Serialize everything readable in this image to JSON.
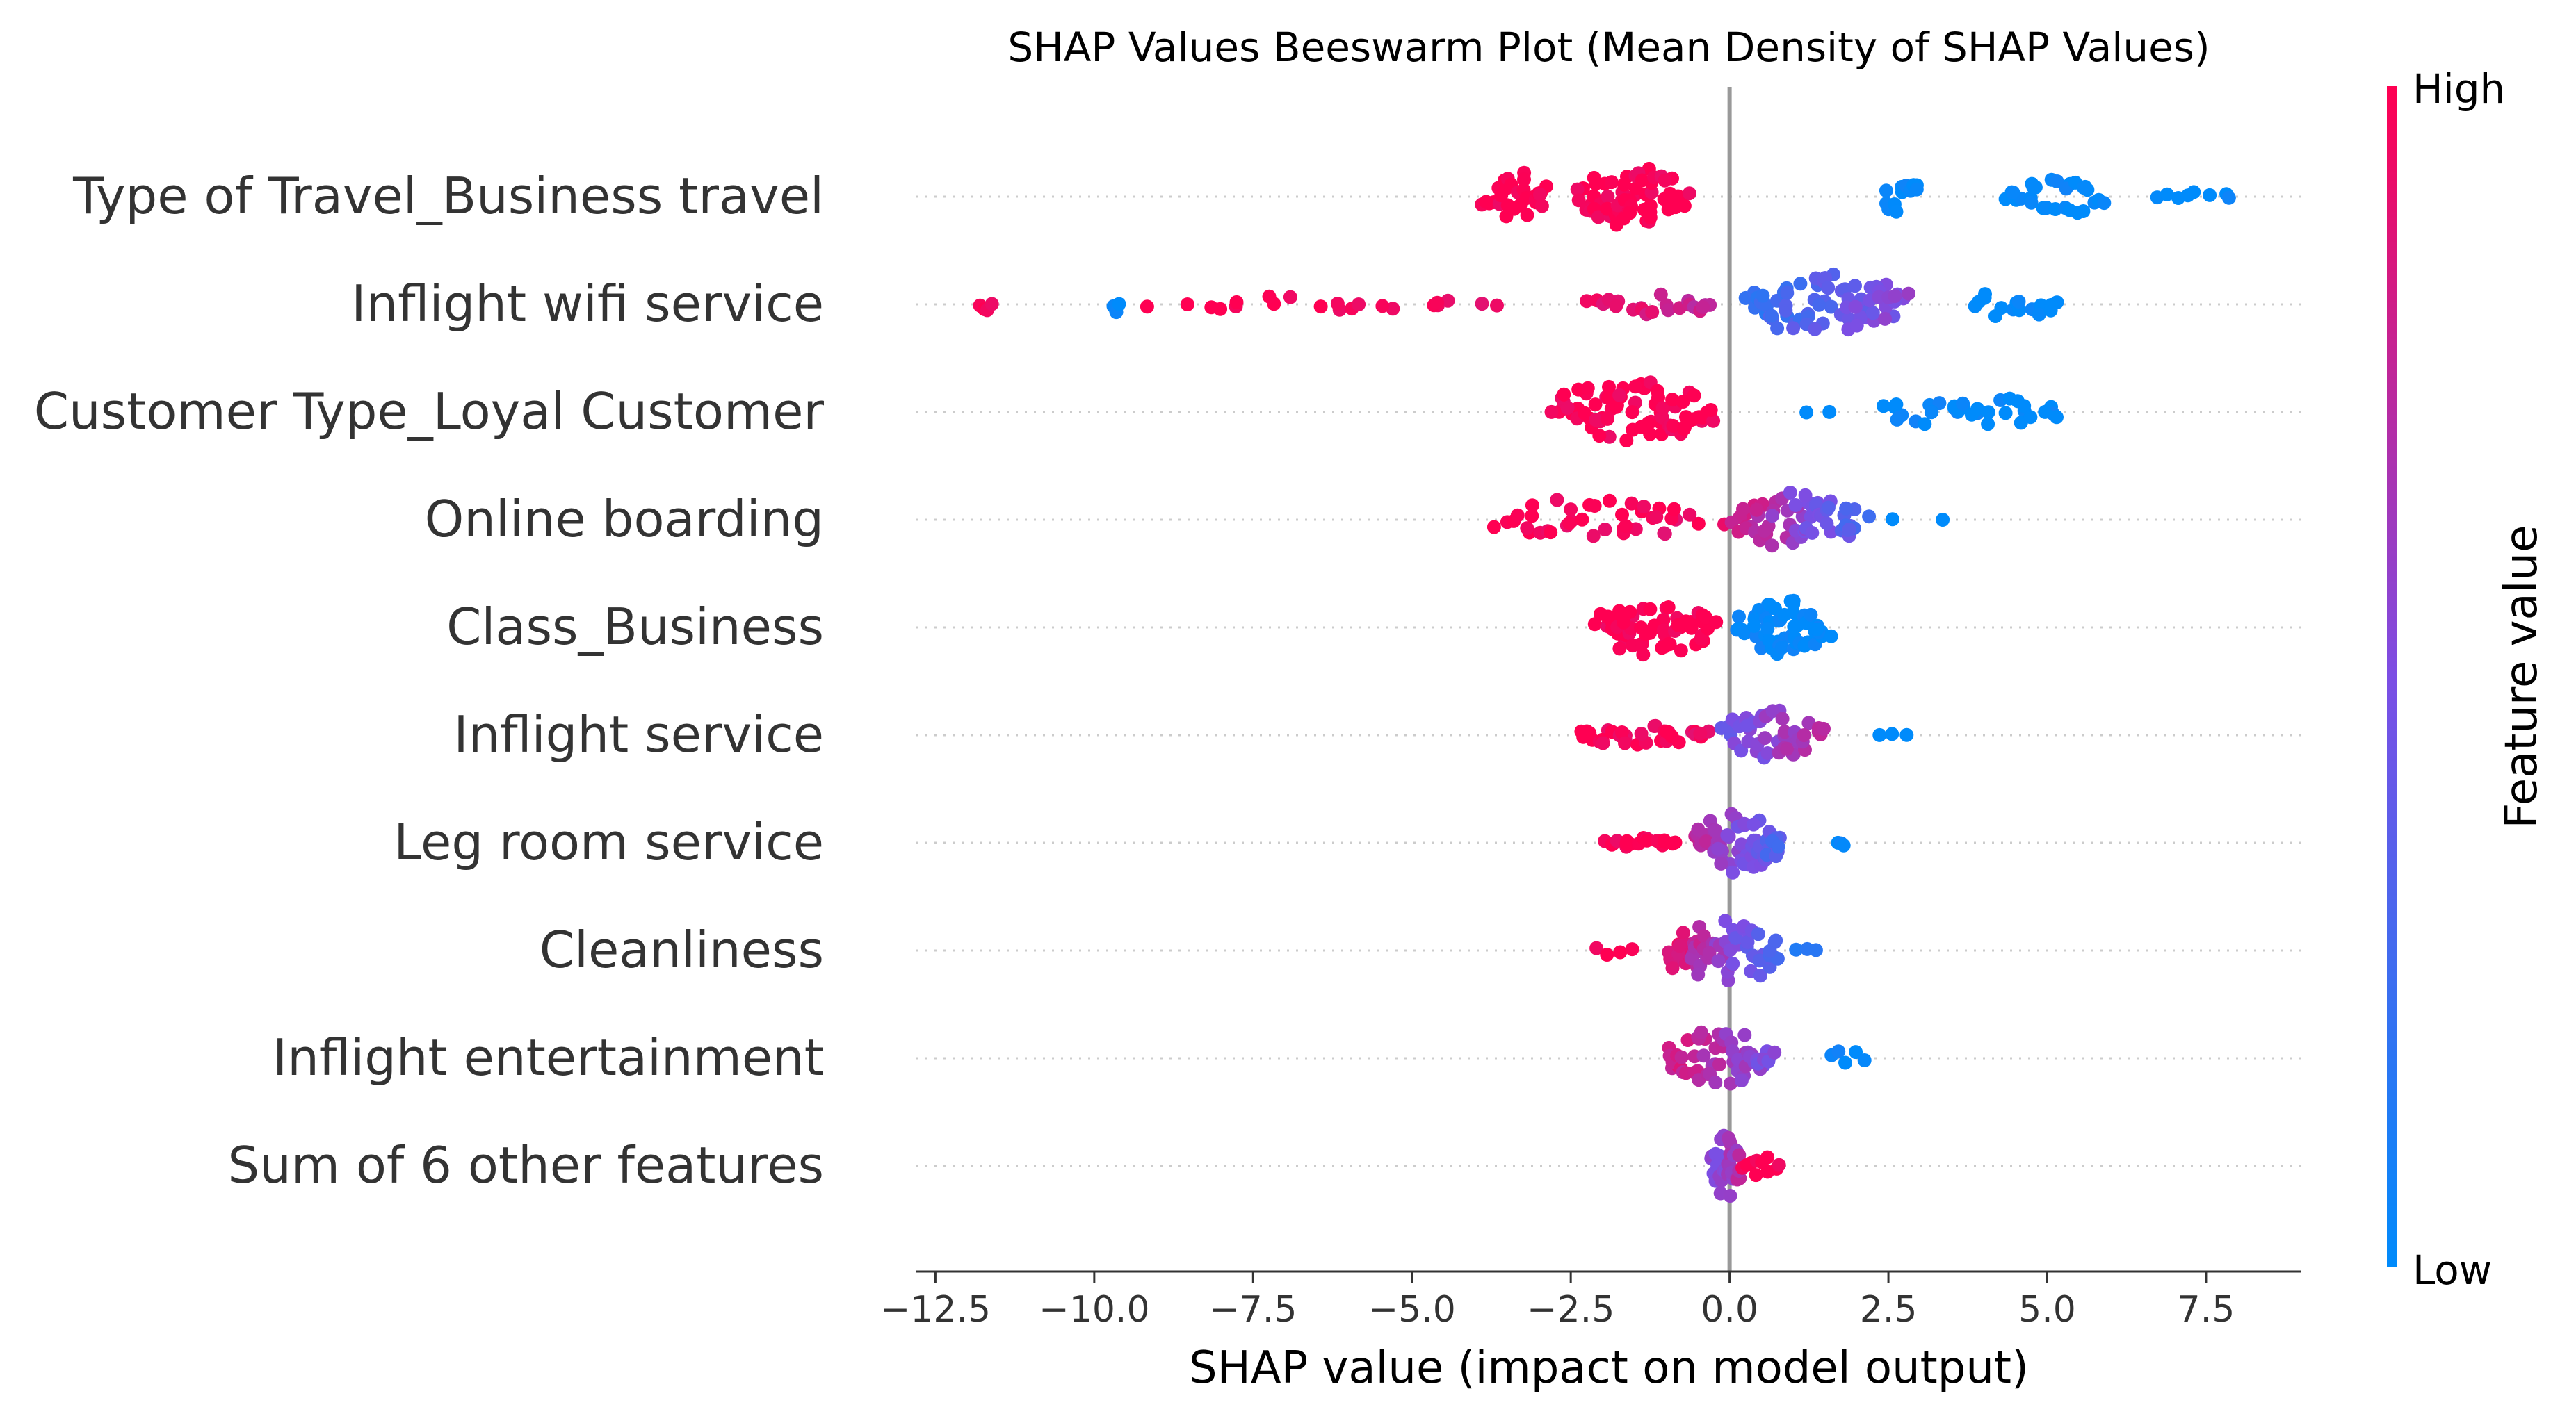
{
  "chart_data": {
    "type": "scatter",
    "subtype": "shap-beeswarm",
    "title": "SHAP Values Beeswarm Plot (Mean Density of SHAP Values)",
    "xlabel": "SHAP value (impact on model output)",
    "xlim": [
      -12.8,
      9.0
    ],
    "x_ticks": [
      -12.5,
      -10.0,
      -7.5,
      -5.0,
      -2.5,
      0.0,
      2.5,
      5.0,
      7.5
    ],
    "x_tick_labels": [
      "−12.5",
      "−10.0",
      "−7.5",
      "−5.0",
      "−2.5",
      "0.0",
      "2.5",
      "5.0",
      "7.5"
    ],
    "colorbar": {
      "title": "Feature value",
      "high_label": "High",
      "low_label": "Low",
      "low_color": "#008bfb",
      "mid_color": "#7c4ee4",
      "high_color": "#ff0052"
    },
    "features": [
      {
        "name": "Type of Travel_Business travel",
        "clusters": [
          {
            "min": -3.9,
            "max": -2.8,
            "n": 30,
            "v0": 1.0,
            "v1": 1.0,
            "spread": 0.25
          },
          {
            "min": -2.5,
            "max": -0.6,
            "n": 65,
            "v0": 1.0,
            "v1": 1.0,
            "spread": 0.28
          },
          {
            "min": 2.4,
            "max": 3.0,
            "n": 12,
            "v0": 0.0,
            "v1": 0.0,
            "spread": 0.2
          },
          {
            "min": 4.2,
            "max": 6.0,
            "n": 28,
            "v0": 0.0,
            "v1": 0.0,
            "spread": 0.18
          },
          {
            "min": 6.5,
            "max": 8.1,
            "n": 8,
            "v0": 0.0,
            "v1": 0.0,
            "spread": 0.05
          }
        ]
      },
      {
        "name": "Inflight wifi service",
        "clusters": [
          {
            "min": -11.8,
            "max": -11.6,
            "n": 4,
            "v0": 1.0,
            "v1": 1.0,
            "spread": 0.06
          },
          {
            "min": -9.7,
            "max": -9.6,
            "n": 3,
            "v0": 0.0,
            "v1": 0.0,
            "spread": 0.1
          },
          {
            "min": -9.4,
            "max": -3.3,
            "n": 22,
            "v0": 1.0,
            "v1": 0.95,
            "spread": 0.08
          },
          {
            "min": -2.3,
            "max": -0.1,
            "n": 22,
            "v0": 0.95,
            "v1": 0.75,
            "spread": 0.1
          },
          {
            "min": 0.1,
            "max": 3.0,
            "n": 75,
            "v0": 0.2,
            "v1": 0.55,
            "spread": 0.28
          },
          {
            "min": 3.7,
            "max": 5.3,
            "n": 16,
            "v0": 0.0,
            "v1": 0.0,
            "spread": 0.14
          }
        ]
      },
      {
        "name": "Customer Type_Loyal Customer",
        "clusters": [
          {
            "min": -2.9,
            "max": -0.1,
            "n": 75,
            "v0": 1.0,
            "v1": 1.0,
            "spread": 0.3
          },
          {
            "min": 1.2,
            "max": 1.6,
            "n": 2,
            "v0": 0.0,
            "v1": 0.0,
            "spread": 0.02
          },
          {
            "min": 2.3,
            "max": 5.3,
            "n": 34,
            "v0": 0.0,
            "v1": 0.0,
            "spread": 0.15
          }
        ]
      },
      {
        "name": "Online boarding",
        "clusters": [
          {
            "min": -3.9,
            "max": -0.3,
            "n": 40,
            "v0": 1.0,
            "v1": 0.95,
            "spread": 0.22
          },
          {
            "min": -0.1,
            "max": 2.2,
            "n": 65,
            "v0": 0.85,
            "v1": 0.3,
            "spread": 0.26
          },
          {
            "min": 2.5,
            "max": 3.4,
            "n": 2,
            "v0": 0.0,
            "v1": 0.0,
            "spread": 0.02
          }
        ]
      },
      {
        "name": "Class_Business",
        "clusters": [
          {
            "min": -2.2,
            "max": -0.2,
            "n": 60,
            "v0": 1.0,
            "v1": 1.0,
            "spread": 0.28
          },
          {
            "min": 0.1,
            "max": 1.6,
            "n": 60,
            "v0": 0.0,
            "v1": 0.0,
            "spread": 0.28
          }
        ]
      },
      {
        "name": "Inflight service",
        "clusters": [
          {
            "min": -2.6,
            "max": -0.2,
            "n": 35,
            "v0": 1.0,
            "v1": 0.95,
            "spread": 0.1
          },
          {
            "min": -0.2,
            "max": 1.5,
            "n": 50,
            "v0": 0.45,
            "v1": 0.7,
            "spread": 0.24
          },
          {
            "min": 2.3,
            "max": 2.8,
            "n": 3,
            "v0": 0.0,
            "v1": 0.0,
            "spread": 0.02
          }
        ]
      },
      {
        "name": "Leg room service",
        "clusters": [
          {
            "min": -2.0,
            "max": -0.7,
            "n": 20,
            "v0": 1.0,
            "v1": 1.0,
            "spread": 0.05
          },
          {
            "min": -0.6,
            "max": 0.9,
            "n": 60,
            "v0": 0.75,
            "v1": 0.3,
            "spread": 0.28
          },
          {
            "min": 1.7,
            "max": 1.8,
            "n": 3,
            "v0": 0.0,
            "v1": 0.0,
            "spread": 0.1
          }
        ]
      },
      {
        "name": "Cleanliness",
        "clusters": [
          {
            "min": -2.2,
            "max": -1.5,
            "n": 4,
            "v0": 1.0,
            "v1": 1.0,
            "spread": 0.08
          },
          {
            "min": -1.1,
            "max": 0.9,
            "n": 70,
            "v0": 0.9,
            "v1": 0.3,
            "spread": 0.3
          },
          {
            "min": 1.0,
            "max": 1.4,
            "n": 3,
            "v0": 0.1,
            "v1": 0.1,
            "spread": 0.04
          }
        ]
      },
      {
        "name": "Inflight entertainment",
        "clusters": [
          {
            "min": -1.1,
            "max": 0.8,
            "n": 60,
            "v0": 0.85,
            "v1": 0.5,
            "spread": 0.26
          },
          {
            "min": 1.5,
            "max": 2.2,
            "n": 5,
            "v0": 0.0,
            "v1": 0.0,
            "spread": 0.08
          }
        ]
      },
      {
        "name": "Sum of 6 other features",
        "clusters": [
          {
            "min": -0.3,
            "max": 0.2,
            "n": 35,
            "v0": 0.5,
            "v1": 0.7,
            "spread": 0.3
          },
          {
            "min": 0.2,
            "max": 0.8,
            "n": 10,
            "v0": 1.0,
            "v1": 1.0,
            "spread": 0.1
          }
        ]
      }
    ]
  }
}
